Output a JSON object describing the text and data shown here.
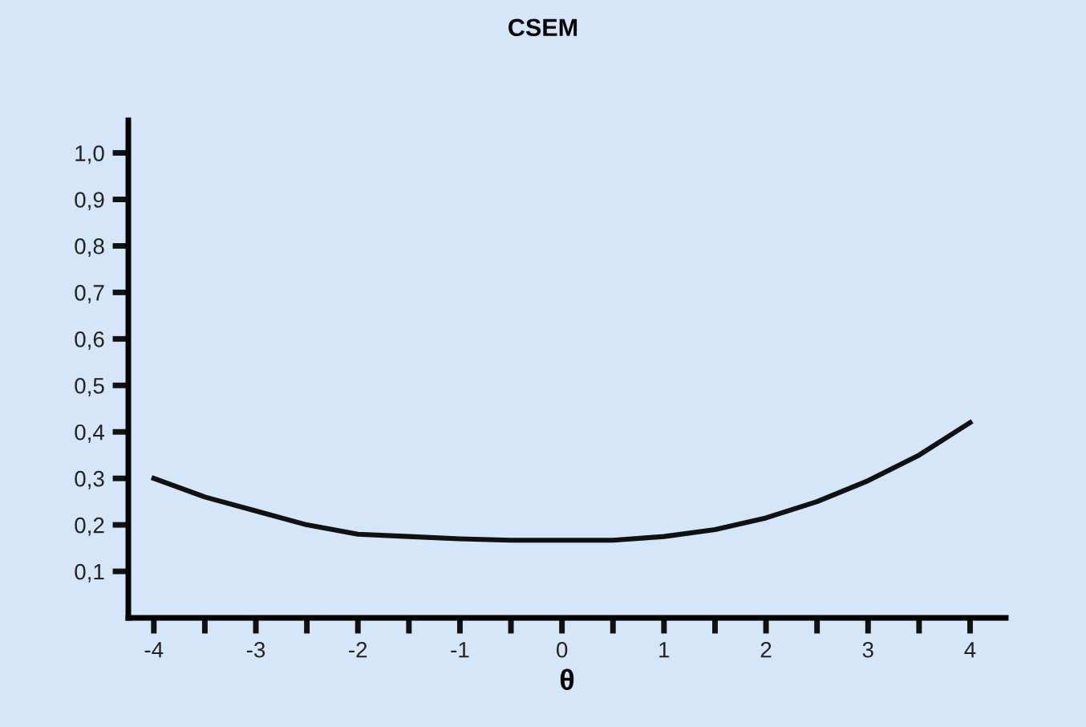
{
  "chart_data": {
    "type": "line",
    "title": "CSEM",
    "xlabel": "θ",
    "x": [
      -4,
      -3.5,
      -3,
      -2.5,
      -2,
      -1.5,
      -1,
      -0.5,
      0,
      0.5,
      1,
      1.5,
      2,
      2.5,
      3,
      3.5,
      4
    ],
    "series": [
      {
        "color": "#111111",
        "values": [
          0.3,
          0.26,
          0.23,
          0.2,
          0.18,
          0.175,
          0.17,
          0.167,
          0.167,
          0.167,
          0.175,
          0.19,
          0.215,
          0.25,
          0.295,
          0.35,
          0.42
        ]
      }
    ],
    "xlim": [
      -4.25,
      4.35
    ],
    "ylim": [
      0,
      1.07
    ],
    "xticks": [
      -4,
      {
        "value": -3.5,
        "label": null
      },
      -3,
      {
        "value": -2.5,
        "label": null
      },
      -2,
      {
        "value": -1.5,
        "label": null
      },
      -1,
      {
        "value": -0.5,
        "label": null
      },
      0,
      {
        "value": 0.5,
        "label": null
      },
      1,
      {
        "value": 1.5,
        "label": null
      },
      2,
      {
        "value": 2.5,
        "label": null
      },
      3,
      {
        "value": 3.5,
        "label": null
      },
      4
    ],
    "yticks": [
      {
        "value": 0.1,
        "label": "0,1"
      },
      {
        "value": 0.2,
        "label": "0,2"
      },
      {
        "value": 0.3,
        "label": "0,3"
      },
      {
        "value": 0.4,
        "label": "0,4"
      },
      {
        "value": 0.5,
        "label": "0,5"
      },
      {
        "value": 0.6,
        "label": "0,6"
      },
      {
        "value": 0.7,
        "label": "0,7"
      },
      {
        "value": 0.8,
        "label": "0,8"
      },
      {
        "value": 0.9,
        "label": "0,9"
      },
      {
        "value": 1.0,
        "label": "1,0"
      }
    ],
    "grid": false,
    "marker": "none",
    "line_style": "solid"
  }
}
